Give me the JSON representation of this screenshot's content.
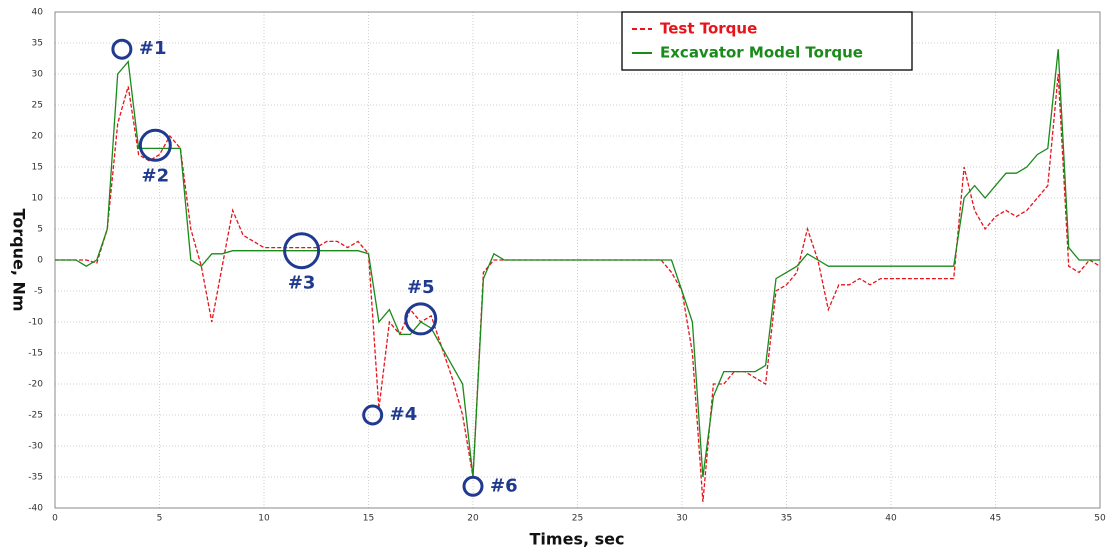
{
  "chart_data": {
    "type": "line",
    "x_label": "Times, sec",
    "y_label": "Torque, Nm",
    "xlim": [
      0,
      50
    ],
    "ylim": [
      -40,
      40
    ],
    "xticks": [
      0,
      5,
      10,
      15,
      20,
      25,
      30,
      35,
      40,
      45,
      50
    ],
    "yticks": [
      -40,
      -35,
      -30,
      -25,
      -20,
      -15,
      -10,
      -5,
      0,
      5,
      10,
      15,
      20,
      25,
      30,
      35,
      40
    ],
    "grid": true,
    "legend": "upper right",
    "x": [
      0,
      0.5,
      1,
      1.5,
      2,
      2.5,
      3,
      3.5,
      4,
      4.5,
      5,
      5.5,
      6,
      6.5,
      7,
      7.5,
      8,
      8.5,
      9,
      9.5,
      10,
      10.5,
      11,
      11.5,
      12,
      12.5,
      13,
      13.5,
      14,
      14.5,
      15,
      15.5,
      16,
      16.5,
      17,
      17.5,
      18,
      18.5,
      19,
      19.5,
      20,
      20.5,
      21,
      21.5,
      22,
      22.5,
      23,
      23.5,
      24,
      24.5,
      25,
      25.5,
      26,
      26.5,
      27,
      27.5,
      28,
      28.5,
      29,
      29.5,
      30,
      30.5,
      31,
      31.5,
      32,
      32.5,
      33,
      33.5,
      34,
      34.5,
      35,
      35.5,
      36,
      36.5,
      37,
      37.5,
      38,
      38.5,
      39,
      39.5,
      40,
      40.5,
      41,
      41.5,
      42,
      42.5,
      43,
      43.5,
      44,
      44.5,
      45,
      45.5,
      46,
      46.5,
      47,
      47.5,
      48,
      48.5,
      49,
      49.5,
      50
    ],
    "series": [
      {
        "name": "Test Torque",
        "color": "#e8141c",
        "linestyle": "dashed",
        "values": [
          0,
          0,
          0,
          0,
          -0.5,
          5,
          22,
          28,
          17,
          16,
          17,
          20,
          18,
          5,
          -1,
          -10,
          -1,
          8,
          4,
          3,
          2,
          2,
          2,
          2,
          2,
          2,
          3,
          3,
          2,
          3,
          1,
          -24,
          -10,
          -12,
          -8,
          -10,
          -9,
          -14,
          -19,
          -25,
          -35,
          -2,
          0,
          0,
          0,
          0,
          0,
          0,
          0,
          0,
          0,
          0,
          0,
          0,
          0,
          0,
          0,
          0,
          0,
          -2,
          -5,
          -15,
          -39,
          -20,
          -20,
          -18,
          -18,
          -19,
          -20,
          -5,
          -4,
          -2,
          5,
          0,
          -8,
          -4,
          -4,
          -3,
          -4,
          -3,
          -3,
          -3,
          -3,
          -3,
          -3,
          -3,
          -3,
          15,
          8,
          5,
          7,
          8,
          7,
          8,
          10,
          12,
          30,
          -1,
          -2,
          0,
          -1
        ]
      },
      {
        "name": "Excavator Model Torque",
        "color": "#1a8a1a",
        "linestyle": "solid",
        "values": [
          0,
          0,
          0,
          -1,
          0,
          5,
          30,
          32,
          18,
          18,
          18,
          18,
          18,
          0,
          -1,
          1,
          1,
          1.5,
          1.5,
          1.5,
          1.5,
          1.5,
          1.5,
          1.5,
          1.5,
          1.5,
          1.5,
          1.5,
          1.5,
          1.5,
          1,
          -10,
          -8,
          -12,
          -12,
          -10,
          -11,
          -14,
          -17,
          -20,
          -35,
          -3,
          1,
          0,
          0,
          0,
          0,
          0,
          0,
          0,
          0,
          0,
          0,
          0,
          0,
          0,
          0,
          0,
          0,
          0,
          -5,
          -10,
          -35,
          -22,
          -18,
          -18,
          -18,
          -18,
          -17,
          -3,
          -2,
          -1,
          1,
          0,
          -1,
          -1,
          -1,
          -1,
          -1,
          -1,
          -1,
          -1,
          -1,
          -1,
          -1,
          -1,
          -1,
          10,
          12,
          10,
          12,
          14,
          14,
          15,
          17,
          18,
          34,
          2,
          0,
          0,
          0
        ]
      }
    ],
    "annotations": [
      {
        "text": "#1",
        "x": 3.2,
        "y": 34,
        "label_side": "right"
      },
      {
        "text": "#2",
        "x": 4.8,
        "y": 18.5,
        "label_side": "below"
      },
      {
        "text": "#3",
        "x": 11.8,
        "y": 1.5,
        "label_side": "below"
      },
      {
        "text": "#4",
        "x": 15.2,
        "y": -25,
        "label_side": "right"
      },
      {
        "text": "#5",
        "x": 17.5,
        "y": -9.5,
        "label_side": "above"
      },
      {
        "text": "#6",
        "x": 20,
        "y": -36.5,
        "label_side": "right"
      }
    ]
  }
}
